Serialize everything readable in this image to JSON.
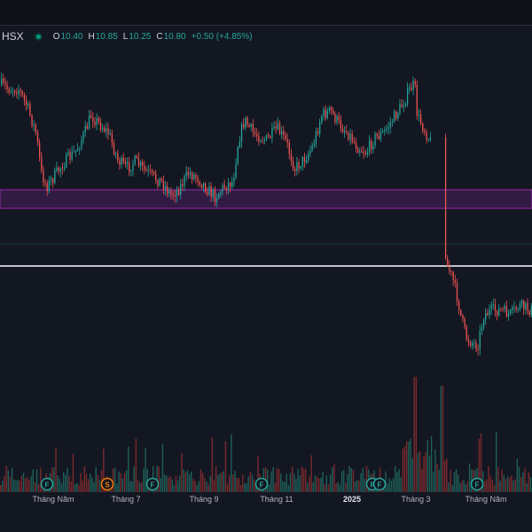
{
  "legend": {
    "symbol": "HSX",
    "o_label": "O",
    "o_value": "10.40",
    "h_label": "H",
    "h_value": "10.85",
    "l_label": "L",
    "l_value": "10.25",
    "c_label": "C",
    "c_value": "10.80",
    "change": "+0.50 (+4.85%)"
  },
  "colors": {
    "background": "#131722",
    "up": "#26a69a",
    "down": "#ef5350",
    "zone_fill": "#4a1f5c",
    "zone_border": "#9c27b0",
    "hline": "#ffffff"
  },
  "x_axis_labels": [
    "Tháng Năm",
    "Tháng 7",
    "Tháng 9",
    "Tháng 11",
    "2025",
    "Tháng 3",
    "Tháng Năm"
  ],
  "event_markers": [
    "F",
    "S",
    "F",
    "F",
    "F",
    "F",
    "F"
  ]
}
